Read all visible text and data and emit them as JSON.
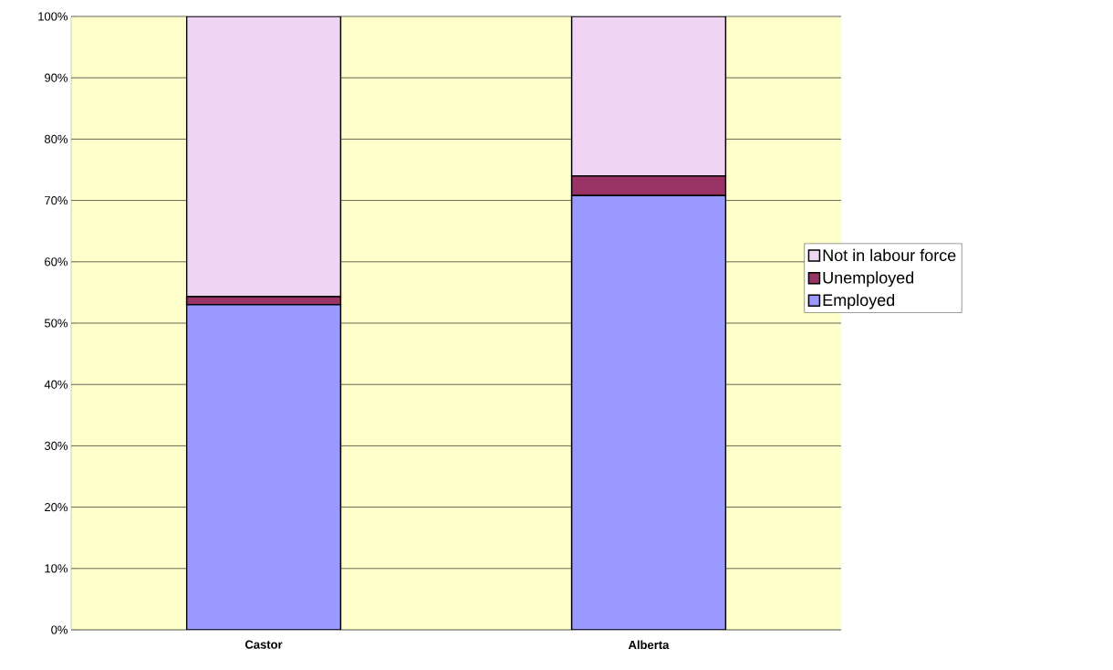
{
  "chart_data": {
    "type": "bar",
    "stacked": true,
    "categories": [
      "Castor",
      "Alberta"
    ],
    "series": [
      {
        "name": "Employed",
        "color": "#9999ff",
        "values": [
          53.0,
          70.8
        ]
      },
      {
        "name": "Unemployed",
        "color": "#993366",
        "values": [
          1.3,
          3.2
        ]
      },
      {
        "name": "Not in labour force",
        "color": "#f0d4f4",
        "values": [
          45.7,
          26.0
        ]
      }
    ],
    "ylim": [
      0,
      100
    ],
    "yticks": [
      {
        "value": 0,
        "label": "0%"
      },
      {
        "value": 10,
        "label": "10%"
      },
      {
        "value": 20,
        "label": "20%"
      },
      {
        "value": 30,
        "label": "30%"
      },
      {
        "value": 40,
        "label": "40%"
      },
      {
        "value": 50,
        "label": "50%"
      },
      {
        "value": 60,
        "label": "60%"
      },
      {
        "value": 70,
        "label": "70%"
      },
      {
        "value": 80,
        "label": "80%"
      },
      {
        "value": 90,
        "label": "90%"
      },
      {
        "value": 100,
        "label": "100%"
      }
    ],
    "grid": "y",
    "legend": "right"
  }
}
